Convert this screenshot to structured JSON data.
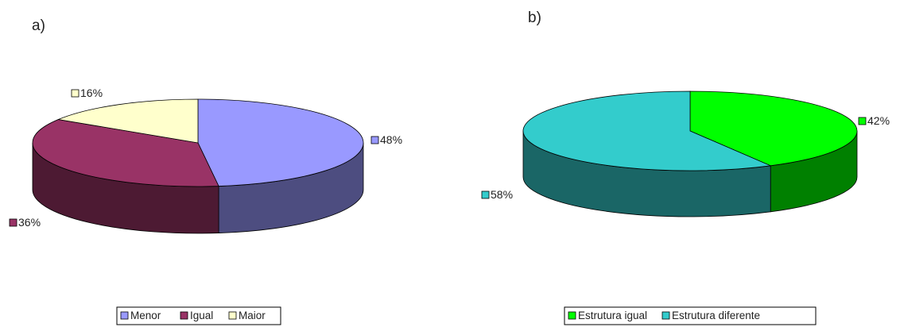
{
  "chart_data": [
    {
      "type": "pie",
      "panel_label": "a)",
      "categories": [
        "Menor",
        "Igual",
        "Maior"
      ],
      "values": [
        48,
        36,
        16
      ],
      "value_labels": [
        "48%",
        "36%",
        "16%"
      ],
      "colors": {
        "top": [
          "#9999ff",
          "#993366",
          "#ffffcc"
        ],
        "side": [
          "#4d4d80",
          "#4d1a33",
          "#80806a"
        ]
      },
      "legend": "bottom",
      "three_d": true
    },
    {
      "type": "pie",
      "panel_label": "b)",
      "categories": [
        "Estrutura igual",
        "Estrutura diferente"
      ],
      "values": [
        42,
        58
      ],
      "value_labels": [
        "42%",
        "58%"
      ],
      "colors": {
        "top": [
          "#00ff00",
          "#33cccc"
        ],
        "side": [
          "#008000",
          "#1a6666"
        ]
      },
      "legend": "bottom",
      "three_d": true
    }
  ]
}
